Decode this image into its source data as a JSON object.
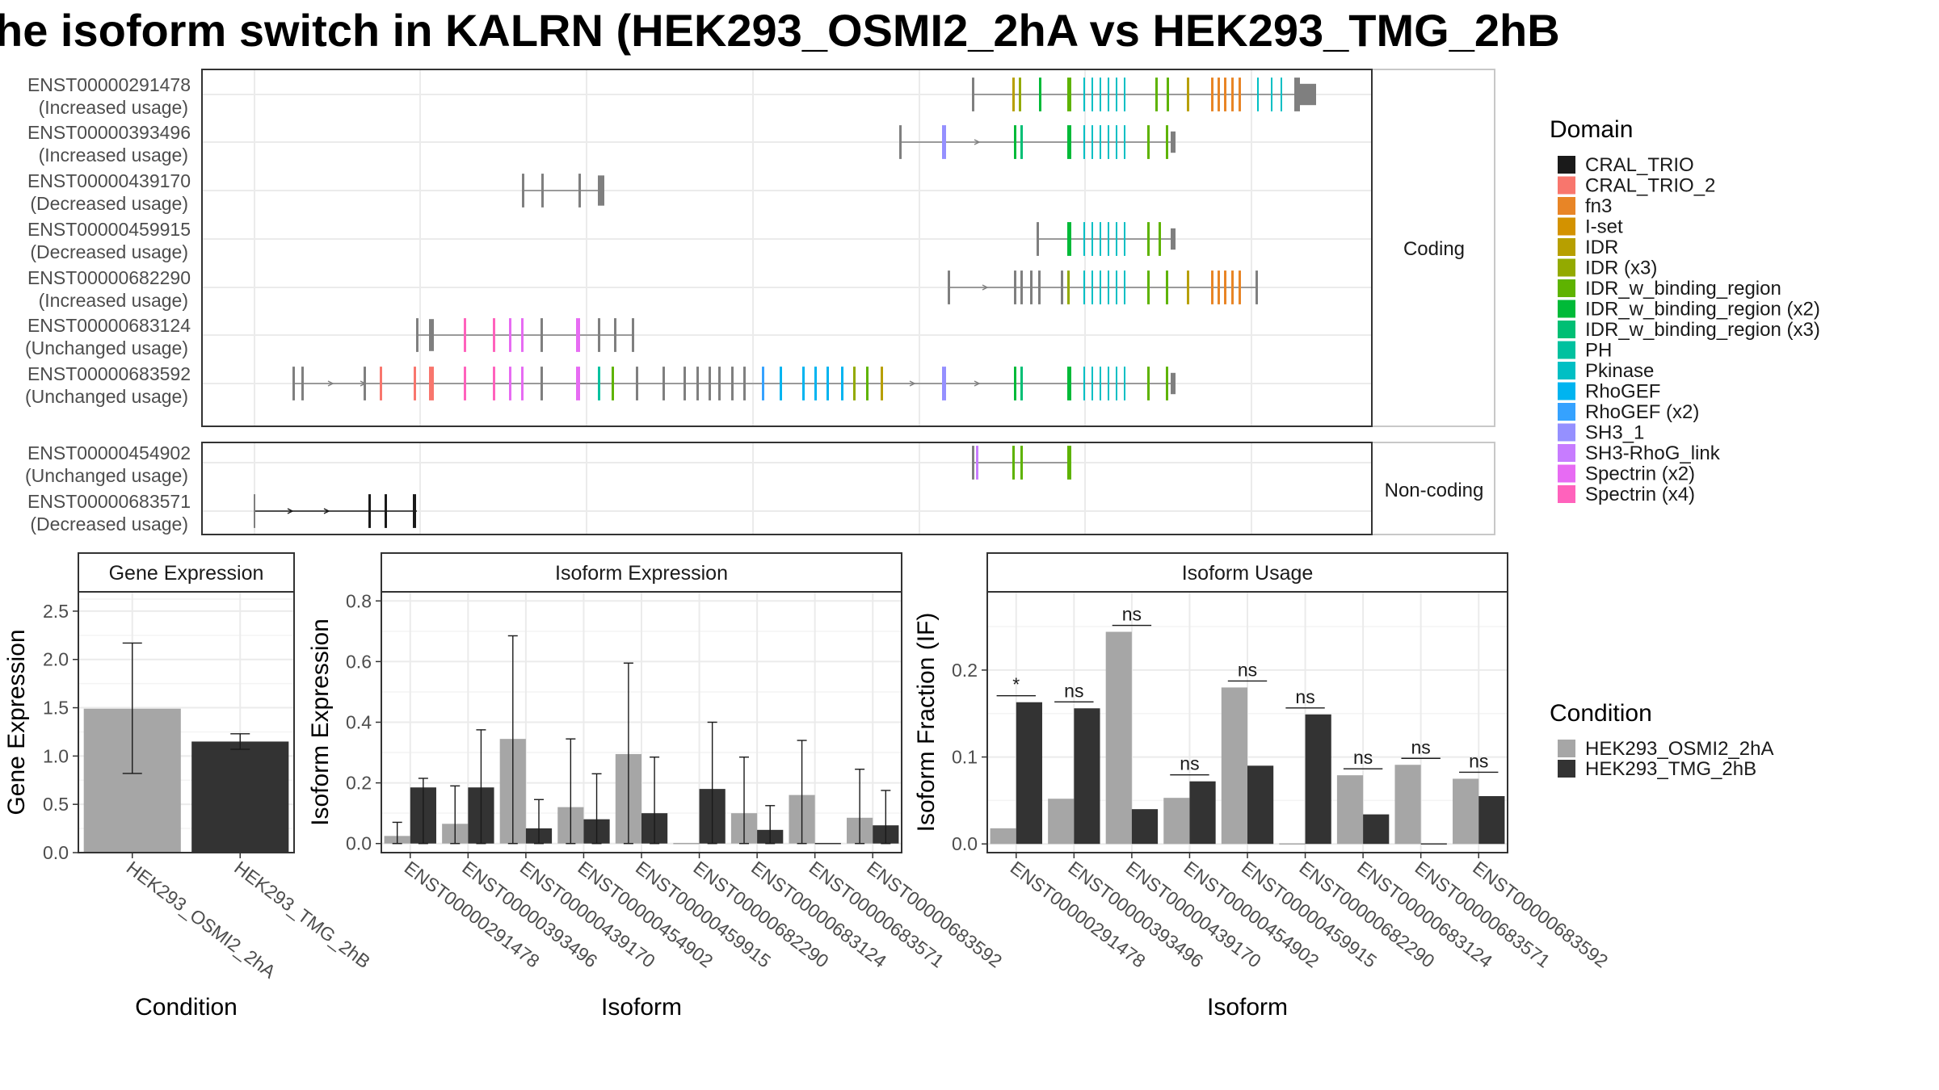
{
  "title": "he isoform switch in KALRN (HEK293_OSMI2_2hA vs HEK293_TMG_2hB",
  "chart_data": [
    {
      "type": "gene_structure",
      "facets": [
        {
          "label": "Coding",
          "transcripts": [
            {
              "id": "ENST00000291478",
              "usage": "(Increased usage)"
            },
            {
              "id": "ENST00000393496",
              "usage": "(Increased usage)"
            },
            {
              "id": "ENST00000439170",
              "usage": "(Decreased usage)"
            },
            {
              "id": "ENST00000459915",
              "usage": "(Decreased usage)"
            },
            {
              "id": "ENST00000682290",
              "usage": "(Increased usage)"
            },
            {
              "id": "ENST00000683124",
              "usage": "(Unchanged usage)"
            },
            {
              "id": "ENST00000683592",
              "usage": "(Unchanged usage)"
            }
          ]
        },
        {
          "label": "Non-coding",
          "transcripts": [
            {
              "id": "ENST00000454902",
              "usage": "(Unchanged usage)"
            },
            {
              "id": "ENST00000683571",
              "usage": "(Decreased usage)"
            }
          ]
        }
      ],
      "domain_legend": {
        "title": "Domain",
        "entries": [
          {
            "name": "CRAL_TRIO",
            "color": "#1a1a1a"
          },
          {
            "name": "CRAL_TRIO_2",
            "color": "#f8766d"
          },
          {
            "name": "fn3",
            "color": "#e88526"
          },
          {
            "name": "I-set",
            "color": "#d39200"
          },
          {
            "name": "IDR",
            "color": "#b79f00"
          },
          {
            "name": "IDR (x3)",
            "color": "#93aa00"
          },
          {
            "name": "IDR_w_binding_region",
            "color": "#5eb300"
          },
          {
            "name": "IDR_w_binding_region (x2)",
            "color": "#00ba38"
          },
          {
            "name": "IDR_w_binding_region (x3)",
            "color": "#00bf74"
          },
          {
            "name": "PH",
            "color": "#00c19f"
          },
          {
            "name": "Pkinase",
            "color": "#00bfc4"
          },
          {
            "name": "RhoGEF",
            "color": "#00b4f0"
          },
          {
            "name": "RhoGEF (x2)",
            "color": "#35a2ff"
          },
          {
            "name": "SH3_1",
            "color": "#9590ff"
          },
          {
            "name": "SH3-RhoG_link",
            "color": "#c77cff"
          },
          {
            "name": "Spectrin (x2)",
            "color": "#e76bf3"
          },
          {
            "name": "Spectrin (x4)",
            "color": "#ff62bc"
          }
        ]
      }
    },
    {
      "type": "bar",
      "title": "Gene Expression",
      "xlabel": "Condition",
      "ylabel": "Gene Expression",
      "ylim": [
        0,
        2.7
      ],
      "yticks": [
        "0.0",
        "0.5",
        "1.0",
        "1.5",
        "2.0",
        "2.5"
      ],
      "categories": [
        "HEK293_OSMI2_2hA",
        "HEK293_TMG_2hB"
      ],
      "values": [
        1.49,
        1.15
      ],
      "error_low": [
        0.82,
        1.07
      ],
      "error_high": [
        2.17,
        1.23
      ]
    },
    {
      "type": "bar",
      "title": "Isoform Expression",
      "xlabel": "Isoform",
      "ylabel": "Isoform Expression",
      "ylim": [
        -0.03,
        0.83
      ],
      "yticks": [
        "0.0",
        "0.2",
        "0.4",
        "0.6",
        "0.8"
      ],
      "categories": [
        "ENST00000291478",
        "ENST00000393496",
        "ENST00000439170",
        "ENST00000454902",
        "ENST00000459915",
        "ENST00000682290",
        "ENST00000683124",
        "ENST00000683571",
        "ENST00000683592"
      ],
      "series": [
        {
          "name": "HEK293_OSMI2_2hA",
          "values": [
            0.025,
            0.065,
            0.345,
            0.12,
            0.295,
            0.0,
            0.1,
            0.16,
            0.085
          ],
          "error_high": [
            0.07,
            0.19,
            0.685,
            0.345,
            0.595,
            0.0,
            0.285,
            0.34,
            0.245
          ]
        },
        {
          "name": "HEK293_TMG_2hB",
          "values": [
            0.185,
            0.185,
            0.05,
            0.08,
            0.1,
            0.18,
            0.045,
            0.0,
            0.06
          ],
          "error_high": [
            0.215,
            0.375,
            0.145,
            0.23,
            0.285,
            0.4,
            0.125,
            0.0,
            0.175
          ]
        }
      ]
    },
    {
      "type": "bar",
      "title": "Isoform Usage",
      "xlabel": "Isoform",
      "ylabel": "Isoform Fraction (IF)",
      "ylim": [
        -0.01,
        0.29
      ],
      "yticks": [
        "0.0",
        "0.1",
        "0.2"
      ],
      "categories": [
        "ENST00000291478",
        "ENST00000393496",
        "ENST00000439170",
        "ENST00000454902",
        "ENST00000459915",
        "ENST00000682290",
        "ENST00000683124",
        "ENST00000683571",
        "ENST00000683592"
      ],
      "series": [
        {
          "name": "HEK293_OSMI2_2hA",
          "values": [
            0.018,
            0.052,
            0.244,
            0.053,
            0.18,
            0.0,
            0.079,
            0.091,
            0.075
          ]
        },
        {
          "name": "HEK293_TMG_2hB",
          "values": [
            0.163,
            0.156,
            0.04,
            0.072,
            0.09,
            0.149,
            0.034,
            0.0,
            0.055
          ]
        }
      ],
      "significance": [
        "*",
        "ns",
        "ns",
        "ns",
        "ns",
        "ns",
        "ns",
        "ns",
        "ns"
      ]
    }
  ],
  "condition_legend": {
    "title": "Condition",
    "entries": [
      {
        "name": "HEK293_OSMI2_2hA",
        "color": "#a6a6a6"
      },
      {
        "name": "HEK293_TMG_2hB",
        "color": "#333333"
      }
    ]
  }
}
